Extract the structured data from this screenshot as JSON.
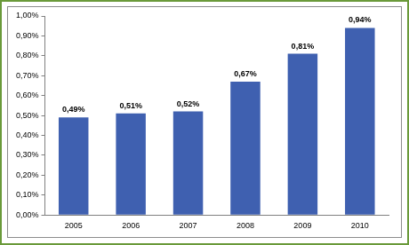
{
  "chart_data": {
    "type": "bar",
    "categories": [
      "2005",
      "2006",
      "2007",
      "2008",
      "2009",
      "2010"
    ],
    "values": [
      0.49,
      0.51,
      0.52,
      0.67,
      0.81,
      0.94
    ],
    "value_labels": [
      "0,49%",
      "0,51%",
      "0,52%",
      "0,67%",
      "0,81%",
      "0,94%"
    ],
    "color": "#3f60b0",
    "ylim": [
      0,
      1
    ],
    "yticks": [
      {
        "value": 0,
        "label": "0,00%"
      },
      {
        "value": 0.1,
        "label": "0,10%"
      },
      {
        "value": 0.2,
        "label": "0,20%"
      },
      {
        "value": 0.3,
        "label": "0,30%"
      },
      {
        "value": 0.4,
        "label": "0,40%"
      },
      {
        "value": 0.5,
        "label": "0,50%"
      },
      {
        "value": 0.6,
        "label": "0,60%"
      },
      {
        "value": 0.7,
        "label": "0,70%"
      },
      {
        "value": 0.8,
        "label": "0,80%"
      },
      {
        "value": 0.9,
        "label": "0,90%"
      },
      {
        "value": 1,
        "label": "1,00%"
      }
    ],
    "grid": false,
    "data_labels": true
  }
}
